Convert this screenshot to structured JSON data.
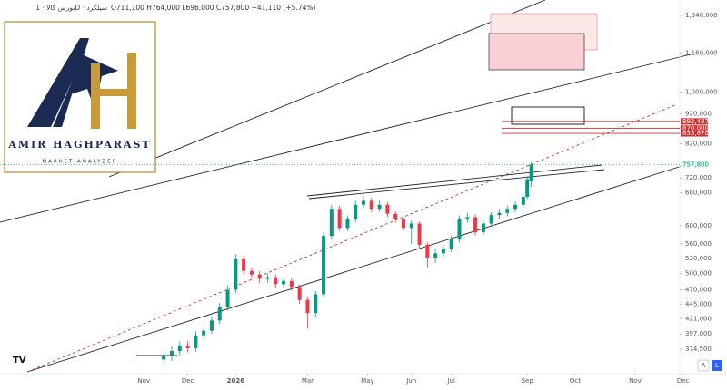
{
  "chart_data": {
    "type": "candlestick",
    "title": "بورس کالا · 1D · سیلگرد",
    "subtitle": "O711,100 H764,000 L696,000 C757,800 +41,110 (+5.74%)",
    "log_scale": true,
    "grid": false,
    "up_color": "#089981",
    "down_color": "#f23645",
    "xlim": [
      -36,
      146
    ],
    "ylim": [
      352000,
      1420000
    ],
    "xticks": [
      {
        "value": 0,
        "label": "Nov"
      },
      {
        "value": 11,
        "label": "Dec"
      },
      {
        "value": 23,
        "label": "2026"
      },
      {
        "value": 41,
        "label": "Mar"
      },
      {
        "value": 56,
        "label": "May"
      },
      {
        "value": 67,
        "label": "Jun"
      },
      {
        "value": 77,
        "label": "Jul"
      },
      {
        "value": 96,
        "label": "Sep"
      },
      {
        "value": 108,
        "label": "Oct"
      },
      {
        "value": 123,
        "label": "Nov"
      },
      {
        "value": 135,
        "label": "Dec"
      }
    ],
    "yticks": [
      {
        "value": 1340000,
        "label": "1,340,000"
      },
      {
        "value": 1160000,
        "label": "1,160,000"
      },
      {
        "value": 1000000,
        "label": "1,000,000"
      },
      {
        "value": 920000,
        "label": "920,000"
      },
      {
        "value": 820000,
        "label": "820,000"
      },
      {
        "value": 720000,
        "label": "720,000"
      },
      {
        "value": 680000,
        "label": "680,000"
      },
      {
        "value": 600000,
        "label": "600,000"
      },
      {
        "value": 560000,
        "label": "560,000"
      },
      {
        "value": 530000,
        "label": "530,000"
      },
      {
        "value": 500000,
        "label": "500,000"
      },
      {
        "value": 470000,
        "label": "470,000"
      },
      {
        "value": 445000,
        "label": "445,000"
      },
      {
        "value": 421000,
        "label": "421,000"
      },
      {
        "value": 397000,
        "label": "397,000"
      },
      {
        "value": 374500,
        "label": "374,500"
      }
    ],
    "price_levels": [
      {
        "value": 893487,
        "label": "893,487"
      },
      {
        "value": 870000,
        "label": "870,000"
      },
      {
        "value": 853670,
        "label": "853,670"
      }
    ],
    "last_price": {
      "value": 757800,
      "label": "757,800"
    },
    "candles": [
      {
        "x": 5,
        "open": 360000,
        "high": 372000,
        "low": 354000,
        "close": 365000
      },
      {
        "x": 7,
        "open": 365000,
        "high": 378000,
        "low": 358000,
        "close": 372000
      },
      {
        "x": 9,
        "open": 372000,
        "high": 386000,
        "low": 366000,
        "close": 380000
      },
      {
        "x": 11,
        "open": 380000,
        "high": 387000,
        "low": 370000,
        "close": 376000
      },
      {
        "x": 13,
        "open": 376000,
        "high": 401000,
        "low": 371000,
        "close": 395000
      },
      {
        "x": 15,
        "open": 395000,
        "high": 409000,
        "low": 389000,
        "close": 402000
      },
      {
        "x": 17,
        "open": 402000,
        "high": 425000,
        "low": 397000,
        "close": 418000
      },
      {
        "x": 19,
        "open": 418000,
        "high": 447000,
        "low": 412000,
        "close": 440000
      },
      {
        "x": 21,
        "open": 440000,
        "high": 478000,
        "low": 434000,
        "close": 470000
      },
      {
        "x": 23,
        "open": 470000,
        "high": 538000,
        "low": 464000,
        "close": 528000
      },
      {
        "x": 25,
        "open": 528000,
        "high": 535000,
        "low": 497000,
        "close": 505000
      },
      {
        "x": 27,
        "open": 505000,
        "high": 512000,
        "low": 490000,
        "close": 498000
      },
      {
        "x": 29,
        "open": 498000,
        "high": 505000,
        "low": 482000,
        "close": 490000
      },
      {
        "x": 31,
        "open": 490000,
        "high": 500000,
        "low": 483000,
        "close": 493000
      },
      {
        "x": 33,
        "open": 493000,
        "high": 498000,
        "low": 472000,
        "close": 480000
      },
      {
        "x": 35,
        "open": 480000,
        "high": 493000,
        "low": 474000,
        "close": 486000
      },
      {
        "x": 37,
        "open": 486000,
        "high": 491000,
        "low": 468000,
        "close": 475000
      },
      {
        "x": 39,
        "open": 475000,
        "high": 480000,
        "low": 445000,
        "close": 452000
      },
      {
        "x": 41,
        "open": 452000,
        "high": 458000,
        "low": 405000,
        "close": 430000
      },
      {
        "x": 43,
        "open": 430000,
        "high": 468000,
        "low": 424000,
        "close": 462000
      },
      {
        "x": 45,
        "open": 462000,
        "high": 586000,
        "low": 458000,
        "close": 577000
      },
      {
        "x": 47,
        "open": 577000,
        "high": 650000,
        "low": 570000,
        "close": 640000
      },
      {
        "x": 49,
        "open": 640000,
        "high": 648000,
        "low": 588000,
        "close": 595000
      },
      {
        "x": 51,
        "open": 595000,
        "high": 624000,
        "low": 588000,
        "close": 615000
      },
      {
        "x": 53,
        "open": 615000,
        "high": 660000,
        "low": 608000,
        "close": 650000
      },
      {
        "x": 55,
        "open": 650000,
        "high": 672000,
        "low": 642000,
        "close": 660000
      },
      {
        "x": 57,
        "open": 660000,
        "high": 668000,
        "low": 632000,
        "close": 640000
      },
      {
        "x": 59,
        "open": 640000,
        "high": 660000,
        "low": 633000,
        "close": 650000
      },
      {
        "x": 61,
        "open": 650000,
        "high": 656000,
        "low": 620000,
        "close": 628000
      },
      {
        "x": 63,
        "open": 628000,
        "high": 634000,
        "low": 607000,
        "close": 615000
      },
      {
        "x": 65,
        "open": 615000,
        "high": 620000,
        "low": 588000,
        "close": 595000
      },
      {
        "x": 67,
        "open": 595000,
        "high": 612000,
        "low": 560000,
        "close": 605000
      },
      {
        "x": 69,
        "open": 605000,
        "high": 610000,
        "low": 550000,
        "close": 558000
      },
      {
        "x": 71,
        "open": 558000,
        "high": 563000,
        "low": 512000,
        "close": 530000
      },
      {
        "x": 73,
        "open": 530000,
        "high": 548000,
        "low": 520000,
        "close": 540000
      },
      {
        "x": 75,
        "open": 540000,
        "high": 558000,
        "low": 532000,
        "close": 550000
      },
      {
        "x": 77,
        "open": 550000,
        "high": 578000,
        "low": 543000,
        "close": 570000
      },
      {
        "x": 79,
        "open": 570000,
        "high": 624000,
        "low": 563000,
        "close": 615000
      },
      {
        "x": 81,
        "open": 615000,
        "high": 630000,
        "low": 607000,
        "close": 620000
      },
      {
        "x": 83,
        "open": 620000,
        "high": 626000,
        "low": 578000,
        "close": 585000
      },
      {
        "x": 85,
        "open": 585000,
        "high": 612000,
        "low": 578000,
        "close": 605000
      },
      {
        "x": 87,
        "open": 605000,
        "high": 632000,
        "low": 598000,
        "close": 625000
      },
      {
        "x": 89,
        "open": 625000,
        "high": 640000,
        "low": 617000,
        "close": 630000
      },
      {
        "x": 91,
        "open": 630000,
        "high": 648000,
        "low": 622000,
        "close": 640000
      },
      {
        "x": 93,
        "open": 640000,
        "high": 658000,
        "low": 632000,
        "close": 650000
      },
      {
        "x": 95,
        "open": 650000,
        "high": 680000,
        "low": 643000,
        "close": 670000
      },
      {
        "x": 96,
        "open": 670000,
        "high": 725000,
        "low": 664000,
        "close": 716690
      },
      {
        "x": 97,
        "open": 711100,
        "high": 764000,
        "low": 696000,
        "close": 757800
      }
    ]
  },
  "logo": {
    "name": "AMIR HAGHPARAST",
    "tagline": "MARKET ANALYZER"
  },
  "axis_buttons": [
    "A",
    "L"
  ]
}
